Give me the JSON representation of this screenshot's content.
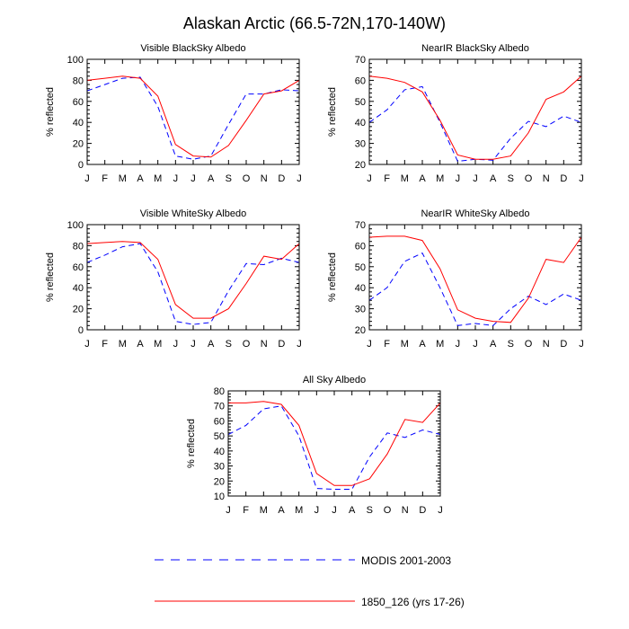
{
  "figure": {
    "title": "Alaskan Arctic (66.5-72N,170-140W)"
  },
  "colors": {
    "modis": "#0000ff",
    "model": "#ff0000",
    "axis": "#000000"
  },
  "legend": {
    "items": [
      {
        "label": "MODIS 2001-2003",
        "style": "dashed",
        "color": "#0000ff"
      },
      {
        "label": "1850_126 (yrs 17-26)",
        "style": "solid",
        "color": "#ff0000"
      }
    ]
  },
  "chart_data": [
    {
      "type": "line",
      "title": "Visible BlackSky Albedo",
      "ylabel": "% reflected",
      "xlabel": "",
      "x": [
        "J",
        "F",
        "M",
        "A",
        "M",
        "J",
        "J",
        "A",
        "S",
        "O",
        "N",
        "D",
        "J"
      ],
      "ylim": [
        0,
        100
      ],
      "yticks": [
        0,
        20,
        40,
        60,
        80,
        100
      ],
      "series": [
        {
          "name": "MODIS 2001-2003",
          "values": [
            70,
            76,
            82,
            83,
            55,
            8,
            5,
            8,
            38,
            67,
            67,
            71,
            70
          ]
        },
        {
          "name": "1850_126 (yrs 17-26)",
          "values": [
            80,
            82,
            84,
            82,
            65,
            19,
            8,
            7,
            18,
            42,
            67,
            70,
            80
          ]
        }
      ]
    },
    {
      "type": "line",
      "title": "NearIR BlackSky Albedo",
      "ylabel": "% reflected",
      "xlabel": "",
      "x": [
        "J",
        "F",
        "M",
        "A",
        "M",
        "J",
        "J",
        "A",
        "S",
        "O",
        "N",
        "D",
        "J"
      ],
      "ylim": [
        20,
        70
      ],
      "yticks": [
        20,
        30,
        40,
        50,
        60,
        70
      ],
      "series": [
        {
          "name": "MODIS 2001-2003",
          "values": [
            40,
            46,
            55.5,
            57,
            40,
            21.5,
            22.5,
            22,
            32.5,
            40.5,
            38,
            43,
            40
          ]
        },
        {
          "name": "1850_126 (yrs 17-26)",
          "values": [
            62,
            61,
            59,
            54.5,
            41,
            24.5,
            22.5,
            22.5,
            24,
            35,
            51,
            54.5,
            62
          ]
        }
      ]
    },
    {
      "type": "line",
      "title": "Visible WhiteSky Albedo",
      "ylabel": "% reflected",
      "xlabel": "",
      "x": [
        "J",
        "F",
        "M",
        "A",
        "M",
        "J",
        "J",
        "A",
        "S",
        "O",
        "N",
        "D",
        "J"
      ],
      "ylim": [
        0,
        100
      ],
      "yticks": [
        0,
        20,
        40,
        60,
        80,
        100
      ],
      "series": [
        {
          "name": "MODIS 2001-2003",
          "values": [
            64,
            71,
            79,
            82,
            55,
            8,
            5,
            7,
            37,
            63,
            62,
            68,
            64
          ]
        },
        {
          "name": "1850_126 (yrs 17-26)",
          "values": [
            82,
            83,
            84,
            83,
            67,
            24,
            11,
            11,
            20,
            44,
            70,
            67,
            82
          ]
        }
      ]
    },
    {
      "type": "line",
      "title": "NearIR WhiteSky Albedo",
      "ylabel": "% reflected",
      "xlabel": "",
      "x": [
        "J",
        "F",
        "M",
        "A",
        "M",
        "J",
        "J",
        "A",
        "S",
        "O",
        "N",
        "D",
        "J"
      ],
      "ylim": [
        20,
        70
      ],
      "yticks": [
        20,
        30,
        40,
        50,
        60,
        70
      ],
      "series": [
        {
          "name": "MODIS 2001-2003",
          "values": [
            34,
            40,
            52.5,
            56.5,
            40,
            22,
            23,
            22,
            30,
            36,
            32,
            37,
            34
          ]
        },
        {
          "name": "1850_126 (yrs 17-26)",
          "values": [
            64,
            64.5,
            64.5,
            62.5,
            49,
            29.5,
            25.5,
            24,
            23.5,
            35,
            53.5,
            52,
            64
          ]
        }
      ]
    },
    {
      "type": "line",
      "title": "All Sky Albedo",
      "ylabel": "% reflected",
      "xlabel": "",
      "x": [
        "J",
        "F",
        "M",
        "A",
        "M",
        "J",
        "J",
        "A",
        "S",
        "O",
        "N",
        "D",
        "J"
      ],
      "ylim": [
        10,
        80
      ],
      "yticks": [
        10,
        20,
        30,
        40,
        50,
        60,
        70,
        80
      ],
      "series": [
        {
          "name": "MODIS 2001-2003",
          "values": [
            51,
            57,
            68,
            70,
            50,
            15,
            14.5,
            14.5,
            36,
            52,
            49,
            54,
            51
          ]
        },
        {
          "name": "1850_126 (yrs 17-26)",
          "values": [
            72,
            72,
            73,
            71,
            57,
            25,
            17,
            17,
            21.5,
            38,
            61,
            59,
            72
          ]
        }
      ]
    }
  ]
}
